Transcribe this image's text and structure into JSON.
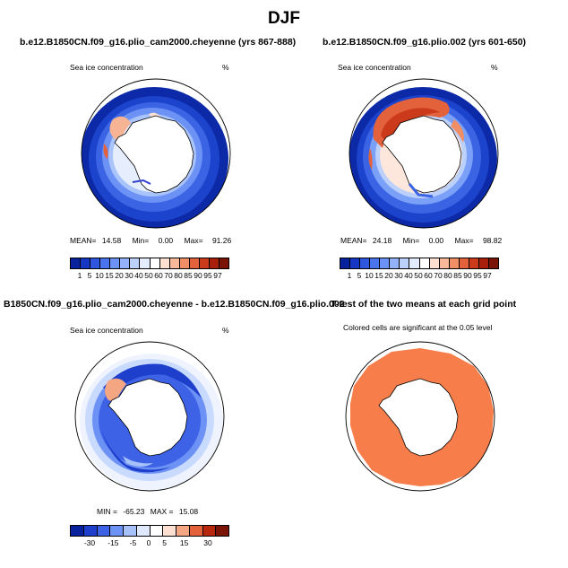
{
  "figure": {
    "title": "DJF",
    "panels": [
      {
        "title": "b.e12.B1850CN.f09_g16.plio_cam2000.cheyenne (yrs 867-888)",
        "left_label": "Sea ice concentration",
        "right_label": "%",
        "stats": {
          "mean_label": "MEAN=",
          "mean": "14.58",
          "min_label": "Min=",
          "min": "0.00",
          "max_label": "Max=",
          "max": "91.26"
        },
        "colorbar_ticks": [
          "1",
          "5",
          "10",
          "15",
          "20",
          "30",
          "40",
          "50",
          "60",
          "70",
          "80",
          "85",
          "90",
          "95",
          "97"
        ]
      },
      {
        "title": "b.e12.B1850CN.f09_g16.plio.002 (yrs 601-650)",
        "left_label": "Sea ice concentration",
        "right_label": "%",
        "stats": {
          "mean_label": "MEAN=",
          "mean": "24.18",
          "min_label": "Min=",
          "min": "0.00",
          "max_label": "Max=",
          "max": "98.82"
        },
        "colorbar_ticks": [
          "1",
          "5",
          "10",
          "15",
          "20",
          "30",
          "40",
          "50",
          "60",
          "70",
          "80",
          "85",
          "90",
          "95",
          "97"
        ]
      },
      {
        "title": "B1850CN.f09_g16.plio_cam2000.cheyenne - b.e12.B1850CN.f09_g16.plio.002",
        "left_label": "Sea ice concentration",
        "right_label": "%",
        "stats_text": {
          "min_label": "MIN =",
          "min": "-65.23",
          "max_label": "MAX =",
          "max": "15.08"
        },
        "colorbar_ticks": [
          "-30",
          "-15",
          "-5",
          "0",
          "5",
          "15",
          "30"
        ]
      },
      {
        "title": "T-test of the two means at each grid point",
        "subtitle": "Colored cells are significant at the 0.05 level"
      }
    ],
    "colors": {
      "seq": [
        "#08219c",
        "#1537c4",
        "#2e56de",
        "#4a73ee",
        "#6d92f5",
        "#93b2fa",
        "#bcd0fc",
        "#e3ecfe",
        "#ffffff",
        "#fde0d2",
        "#f8b89a",
        "#f08f66",
        "#e3623c",
        "#cc3a1c",
        "#a8200c",
        "#7a1406"
      ],
      "diff": [
        "#08219c",
        "#1e3fcc",
        "#3d62e6",
        "#6d92f5",
        "#a7c2fb",
        "#dfe9fe",
        "#ffffff",
        "#fde0d2",
        "#f4a582",
        "#e3623c",
        "#b8280e",
        "#7a1406"
      ],
      "ttest": "#f77e4a",
      "land": "#ffffff"
    }
  }
}
